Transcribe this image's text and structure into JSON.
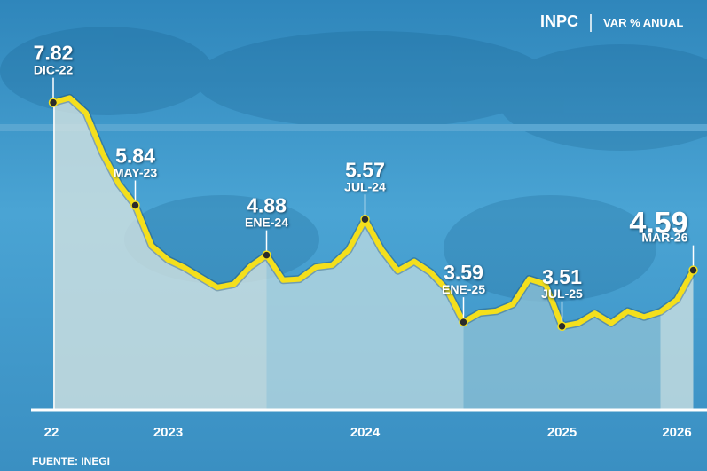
{
  "chart_data": {
    "type": "line",
    "title": "INPC",
    "subtitle": "VAR % ANUAL",
    "source": "FUENTE: INEGI",
    "categories": [
      "22",
      null,
      null,
      null,
      null,
      null,
      null,
      "2023",
      null,
      null,
      null,
      null,
      null,
      null,
      null,
      null,
      null,
      null,
      null,
      "2024",
      null,
      null,
      null,
      null,
      null,
      null,
      null,
      null,
      null,
      null,
      null,
      "2025",
      null,
      null,
      null,
      null,
      null,
      null,
      "2026",
      null
    ],
    "series": [
      {
        "name": "INPC",
        "color": "#f4df1c",
        "values": [
          7.82,
          7.91,
          7.62,
          6.85,
          6.25,
          5.84,
          5.06,
          4.79,
          4.64,
          4.45,
          4.26,
          4.32,
          4.66,
          4.88,
          4.4,
          4.42,
          4.65,
          4.69,
          4.98,
          5.57,
          4.99,
          4.58,
          4.76,
          4.55,
          4.21,
          3.59,
          3.77,
          3.8,
          3.93,
          4.42,
          4.32,
          3.51,
          3.57,
          3.76,
          3.57,
          3.8,
          3.69,
          3.79,
          4.02,
          4.59
        ],
        "point_labels": [
          "DIC-22",
          null,
          null,
          null,
          null,
          "MAY-23",
          null,
          null,
          null,
          null,
          null,
          null,
          null,
          "ENE-24",
          null,
          null,
          null,
          null,
          null,
          "JUL-24",
          null,
          null,
          null,
          null,
          null,
          "ENE-25",
          null,
          null,
          null,
          null,
          null,
          "JUL-25",
          null,
          null,
          null,
          null,
          null,
          null,
          null,
          "MAR-26"
        ]
      }
    ],
    "ylim": [
      1.9,
      8.6
    ]
  }
}
